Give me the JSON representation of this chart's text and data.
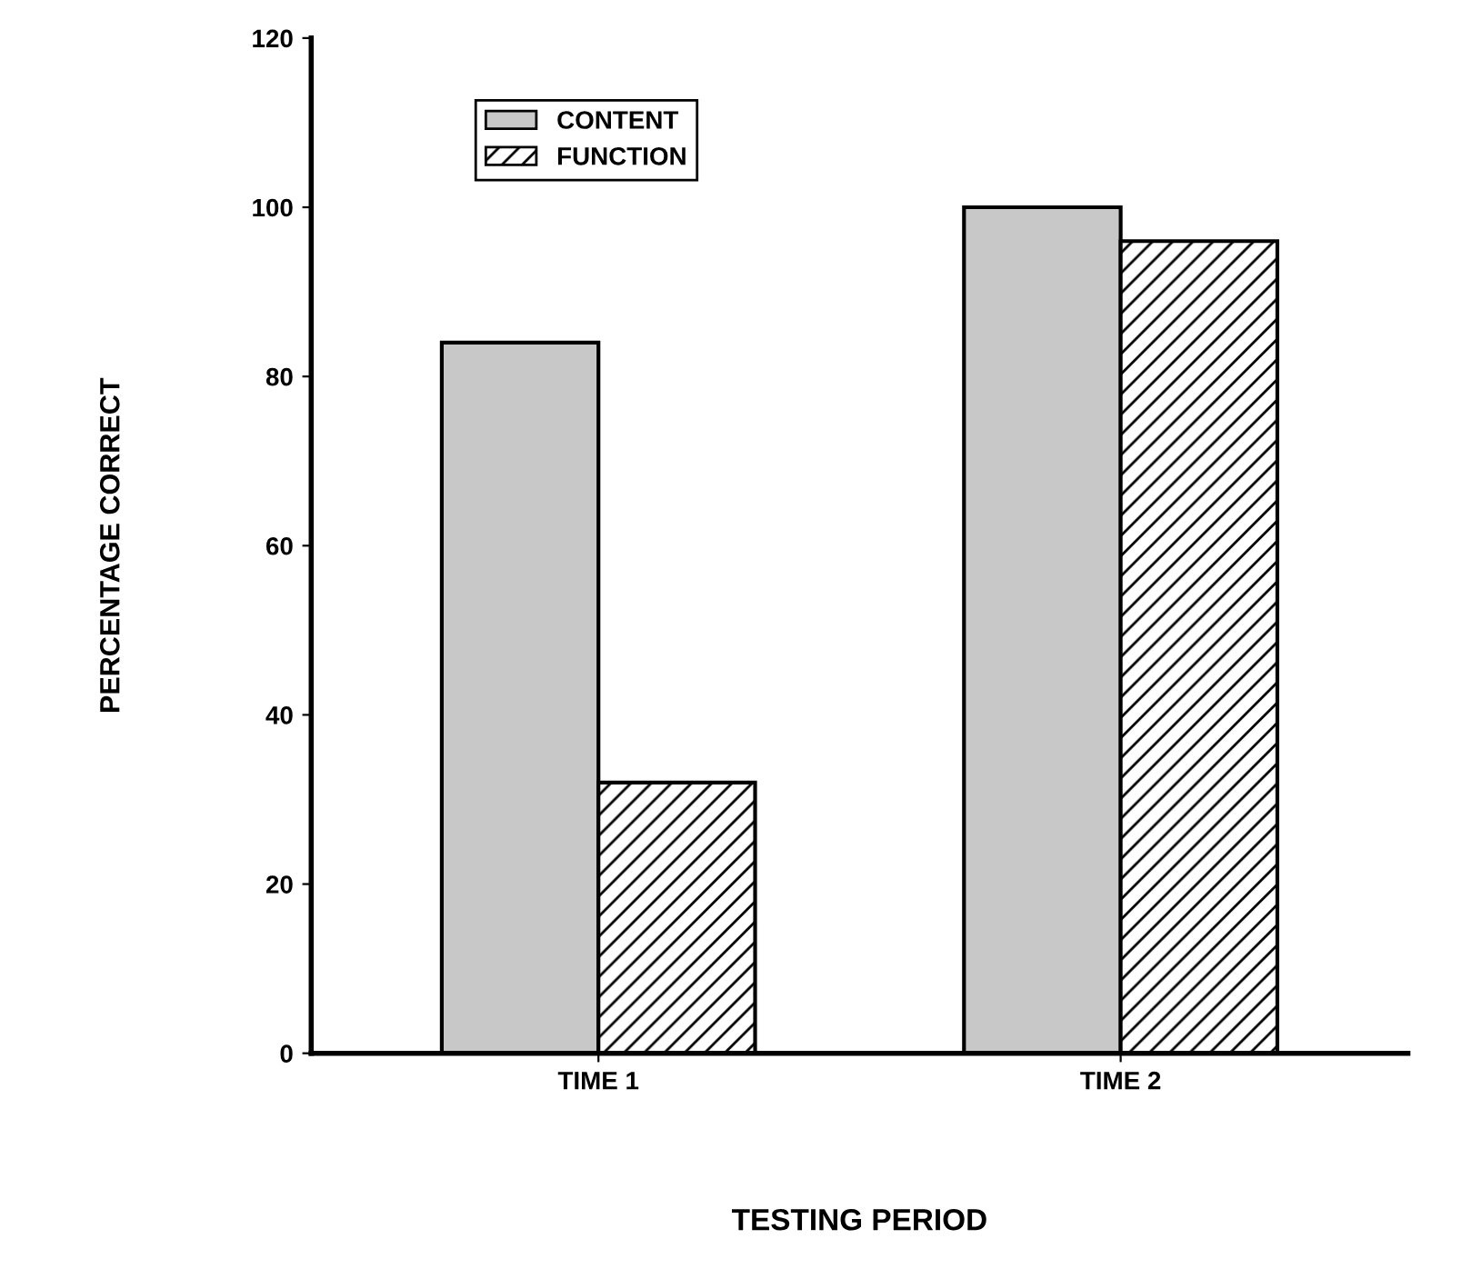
{
  "chart_data": {
    "type": "bar",
    "xlabel": "TESTING PERIOD",
    "ylabel": "PERCENTAGE CORRECT",
    "categories": [
      "TIME 1",
      "TIME 2"
    ],
    "series": [
      {
        "name": "CONTENT",
        "color": "#c8c8c8",
        "values": [
          84,
          100
        ]
      },
      {
        "name": "FUNCTION",
        "color": "#000000",
        "values": [
          32,
          96
        ]
      }
    ],
    "ylim": [
      0,
      120
    ],
    "yticks": [
      0,
      20,
      40,
      60,
      80,
      100,
      120
    ],
    "grid": false,
    "legend": "top left"
  }
}
